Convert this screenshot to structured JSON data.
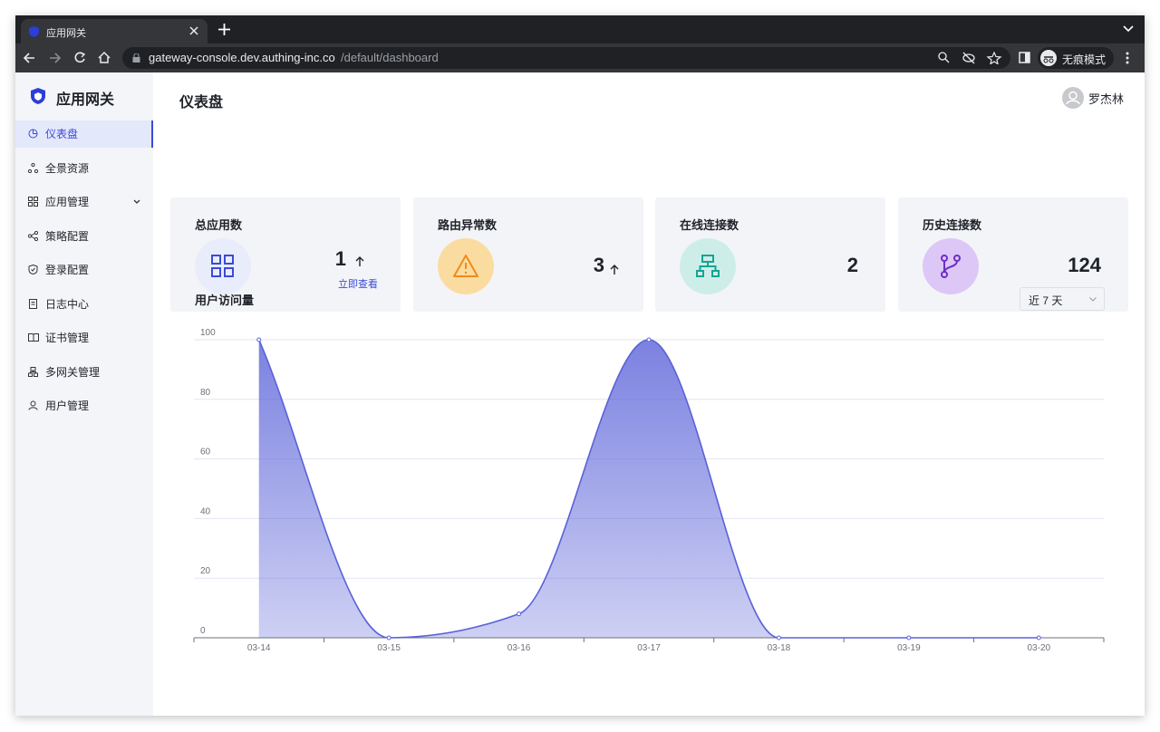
{
  "browser": {
    "tab_title": "应用网关",
    "url_host": "gateway-console.dev.authing-inc.co",
    "url_path": "/default/dashboard",
    "profile": "无痕模式"
  },
  "sidebar": {
    "brand": "应用网关",
    "menu": [
      "仪表盘",
      "全景资源",
      "应用管理",
      "策略配置",
      "登录配置",
      "日志中心",
      "证书管理",
      "多网关管理",
      "用户管理"
    ]
  },
  "header": {
    "title": "仪表盘",
    "user": "罗杰林"
  },
  "stats": [
    {
      "label": "总应用数",
      "value": 1,
      "link": "立即查看"
    },
    {
      "label": "路由异常数",
      "value": 3
    },
    {
      "label": "在线连接数",
      "value": 2
    },
    {
      "label": "历史连接数",
      "value": 124
    }
  ],
  "chart_data": {
    "type": "area",
    "title": "用户访问量",
    "range": "近 7 天",
    "categories": [
      "03-14",
      "03-15",
      "03-16",
      "03-17",
      "03-18",
      "03-19",
      "03-20"
    ],
    "values": [
      100,
      0,
      8,
      100,
      0,
      0,
      0
    ],
    "color": "#5a62d8",
    "ylim": [
      0,
      100
    ],
    "yticks": [
      0,
      20,
      40,
      60,
      80,
      100
    ],
    "grid": true
  }
}
